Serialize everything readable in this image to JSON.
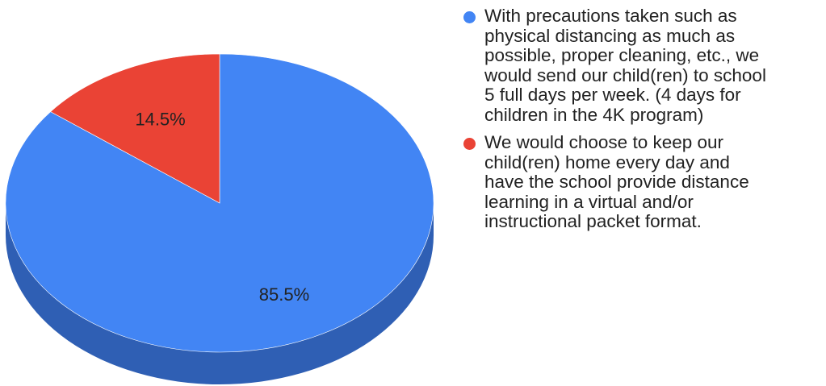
{
  "chart_data": {
    "type": "pie",
    "style": "3d",
    "slices": [
      {
        "label": "With precautions taken such as physical distancing as much as possible, proper cleaning, etc., we would send our child(ren) to school 5 full days per week.  (4 days for children in the 4K program)",
        "value": 85.5,
        "value_label": "85.5%",
        "color": "#4285f4",
        "side_color": "#2f5fb4"
      },
      {
        "label": "We would choose to keep our child(ren) home every day and have the school provide distance learning in a virtual and/or instructional packet format.",
        "value": 14.5,
        "value_label": "14.5%",
        "color": "#ea4335",
        "side_color": "#b53024"
      }
    ],
    "legend": {
      "position": "right",
      "items": [
        {
          "text": "With precautions taken such as\nphysical distancing as much as\npossible, proper cleaning, etc., we\nwould send our child(ren) to school\n5 full days per week.  (4 days for\nchildren in the 4K program)",
          "color": "#4285f4"
        },
        {
          "text": "We would choose to keep our\nchild(ren) home every day and\nhave the school provide distance\nlearning in a virtual and/or\ninstructional packet format.",
          "color": "#ea4335"
        }
      ]
    }
  }
}
